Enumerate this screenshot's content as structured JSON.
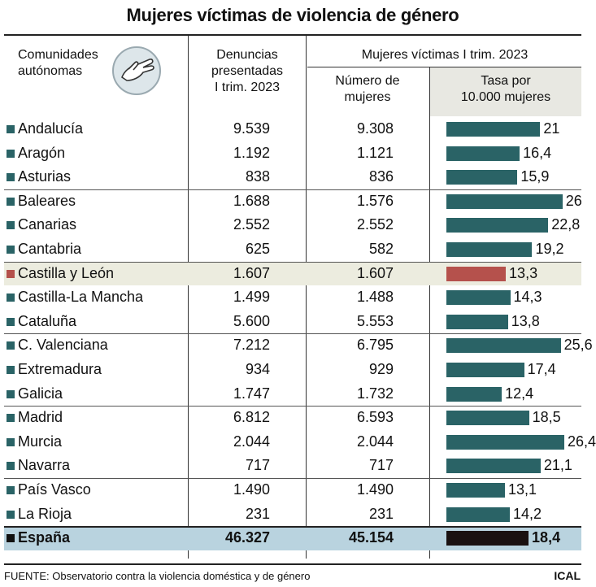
{
  "title": "Mujeres víctimas de violencia de género",
  "headers": {
    "comunidades_1": "Comunidades",
    "comunidades_2": "autónomas",
    "denuncias_1": "Denuncias",
    "denuncias_2": "presentadas",
    "denuncias_3": "I trim. 2023",
    "mujeres_victimas": "Mujeres víctimas I trim. 2023",
    "numero_1": "Número de",
    "numero_2": "mujeres",
    "tasa_1": "Tasa por",
    "tasa_2": "10.000 mujeres"
  },
  "colors": {
    "bar": "#2a6366",
    "highlight_bar": "#b5514c",
    "total_bar": "#1a1111"
  },
  "chart_data": {
    "type": "table",
    "columns": [
      "Comunidades autónomas",
      "Denuncias presentadas I trim. 2023",
      "Número de mujeres",
      "Tasa por 10.000 mujeres"
    ],
    "xlim": [
      0,
      26.4
    ],
    "rows": [
      {
        "name": "Andalucía",
        "denuncias": "9.539",
        "mujeres": "9.308",
        "tasa": 21,
        "tasa_label": "21"
      },
      {
        "name": "Aragón",
        "denuncias": "1.192",
        "mujeres": "1.121",
        "tasa": 16.4,
        "tasa_label": "16,4"
      },
      {
        "name": "Asturias",
        "denuncias": "838",
        "mujeres": "836",
        "tasa": 15.9,
        "tasa_label": "15,9"
      },
      {
        "name": "Baleares",
        "denuncias": "1.688",
        "mujeres": "1.576",
        "tasa": 26,
        "tasa_label": "26"
      },
      {
        "name": "Canarias",
        "denuncias": "2.552",
        "mujeres": "2.552",
        "tasa": 22.8,
        "tasa_label": "22,8"
      },
      {
        "name": "Cantabria",
        "denuncias": "625",
        "mujeres": "582",
        "tasa": 19.2,
        "tasa_label": "19,2"
      },
      {
        "name": "Castilla y León",
        "denuncias": "1.607",
        "mujeres": "1.607",
        "tasa": 13.3,
        "tasa_label": "13,3",
        "highlight": true
      },
      {
        "name": "Castilla-La Mancha",
        "denuncias": "1.499",
        "mujeres": "1.488",
        "tasa": 14.3,
        "tasa_label": "14,3"
      },
      {
        "name": "Cataluña",
        "denuncias": "5.600",
        "mujeres": "5.553",
        "tasa": 13.8,
        "tasa_label": "13,8"
      },
      {
        "name": "C. Valenciana",
        "denuncias": "7.212",
        "mujeres": "6.795",
        "tasa": 25.6,
        "tasa_label": "25,6"
      },
      {
        "name": "Extremadura",
        "denuncias": "934",
        "mujeres": "929",
        "tasa": 17.4,
        "tasa_label": "17,4"
      },
      {
        "name": "Galicia",
        "denuncias": "1.747",
        "mujeres": "1.732",
        "tasa": 12.4,
        "tasa_label": "12,4"
      },
      {
        "name": "Madrid",
        "denuncias": "6.812",
        "mujeres": "6.593",
        "tasa": 18.5,
        "tasa_label": "18,5"
      },
      {
        "name": "Murcia",
        "denuncias": "2.044",
        "mujeres": "2.044",
        "tasa": 26.4,
        "tasa_label": "26,4"
      },
      {
        "name": "Navarra",
        "denuncias": "717",
        "mujeres": "717",
        "tasa": 21.1,
        "tasa_label": "21,1"
      },
      {
        "name": "País Vasco",
        "denuncias": "1.490",
        "mujeres": "1.490",
        "tasa": 13.1,
        "tasa_label": "13,1"
      },
      {
        "name": "La Rioja",
        "denuncias": "231",
        "mujeres": "231",
        "tasa": 14.2,
        "tasa_label": "14,2"
      }
    ],
    "total": {
      "name": "España",
      "denuncias": "46.327",
      "mujeres": "45.154",
      "tasa": 18.4,
      "tasa_label": "18,4"
    }
  },
  "footer": {
    "source": "FUENTE: Observatorio contra la violencia doméstica y de género",
    "credit": "ICAL"
  }
}
